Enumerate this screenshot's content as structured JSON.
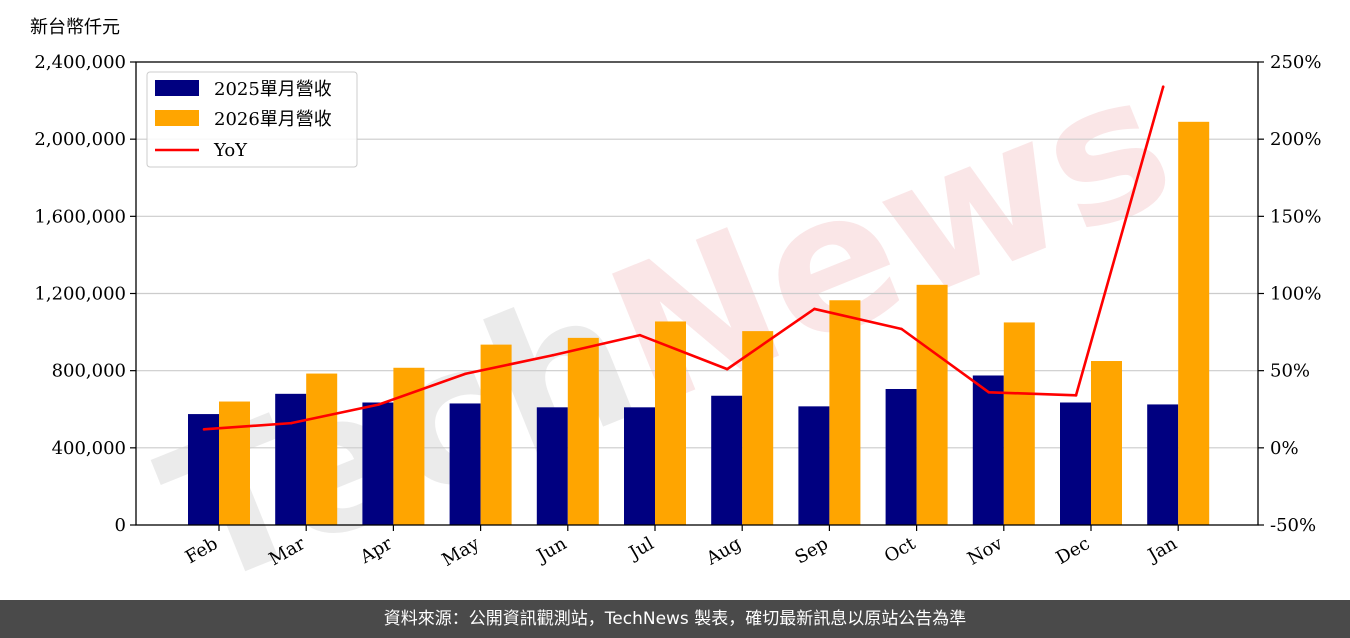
{
  "chart_data": {
    "type": "bar",
    "unit_label": "新台幣仟元",
    "categories": [
      "Feb",
      "Mar",
      "Apr",
      "May",
      "Jun",
      "Jul",
      "Aug",
      "Sep",
      "Oct",
      "Nov",
      "Dec",
      "Jan"
    ],
    "series": [
      {
        "name": "2025單月營收",
        "type": "bar",
        "color": "#000080",
        "values": [
          575000,
          680000,
          635000,
          630000,
          610000,
          610000,
          670000,
          615000,
          705000,
          775000,
          635000,
          625000
        ]
      },
      {
        "name": "2026單月營收",
        "type": "bar",
        "color": "#ffa500",
        "values": [
          640000,
          785000,
          815000,
          935000,
          970000,
          1055000,
          1005000,
          1165000,
          1245000,
          1050000,
          850000,
          2090000
        ]
      },
      {
        "name": "YoY",
        "type": "line",
        "axis": "right",
        "color": "#ff0000",
        "values": [
          12,
          16,
          28,
          48,
          60,
          73,
          51,
          90,
          77,
          36,
          34,
          234
        ]
      }
    ],
    "y_left": {
      "min": 0,
      "max": 2400000,
      "ticks": [
        0,
        400000,
        800000,
        1200000,
        1600000,
        2000000,
        2400000
      ],
      "tick_labels": [
        "0",
        "400,000",
        "800,000",
        "1,200,000",
        "1,600,000",
        "2,000,000",
        "2,400,000"
      ]
    },
    "y_right": {
      "min": -50,
      "max": 250,
      "ticks": [
        -50,
        0,
        50,
        100,
        150,
        200,
        250
      ],
      "tick_labels": [
        "-50%",
        "0%",
        "50%",
        "100%",
        "150%",
        "200%",
        "250%"
      ]
    },
    "grid": true,
    "legend_position": "top-left"
  },
  "watermark": {
    "text_part1": "Tech",
    "text_part2": "News"
  },
  "footer": {
    "text": "資料來源：公開資訊觀測站，TechNews 製表，確切最新訊息以原站公告為準"
  }
}
